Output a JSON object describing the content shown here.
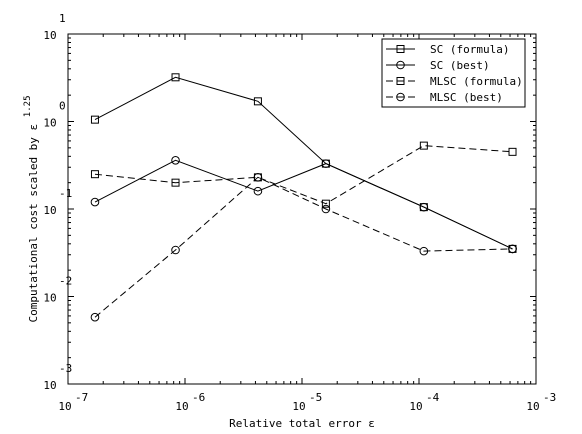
{
  "chart_data": {
    "type": "line",
    "title": "",
    "xlabel": "Relative total error ε",
    "ylabel_base": "Computational cost scaled by ε",
    "ylabel_exp": "1.25",
    "xscale": "log",
    "yscale": "log",
    "xlim": [
      1e-07,
      0.001
    ],
    "ylim": [
      0.001,
      10
    ],
    "x_ticks": [
      {
        "value": 1e-07,
        "base": "10",
        "exp": "-7"
      },
      {
        "value": 1e-06,
        "base": "10",
        "exp": "-6"
      },
      {
        "value": 1e-05,
        "base": "10",
        "exp": "-5"
      },
      {
        "value": 0.0001,
        "base": "10",
        "exp": "-4"
      },
      {
        "value": 0.001,
        "base": "10",
        "exp": "-3"
      }
    ],
    "y_ticks": [
      {
        "value": 0.001,
        "base": "10",
        "exp": "-3"
      },
      {
        "value": 0.01,
        "base": "10",
        "exp": "-2"
      },
      {
        "value": 0.1,
        "base": "10",
        "exp": "-1"
      },
      {
        "value": 1,
        "base": "10",
        "exp": "0"
      },
      {
        "value": 10,
        "base": "10",
        "exp": "1"
      }
    ],
    "grid": false,
    "legend_position": "top-right",
    "series": [
      {
        "name": "SC (formula)",
        "marker": "square",
        "dash": "solid",
        "x": [
          1.7e-07,
          8.3e-07,
          4.2e-06,
          1.6e-05,
          0.00011,
          0.00063
        ],
        "y": [
          1.05,
          3.2,
          1.7,
          0.33,
          0.105,
          0.035
        ]
      },
      {
        "name": "SC (best)",
        "marker": "circle",
        "dash": "solid",
        "x": [
          1.7e-07,
          8.3e-07,
          4.2e-06,
          1.6e-05,
          0.00011,
          0.00063
        ],
        "y": [
          0.12,
          0.36,
          0.16,
          0.33,
          0.105,
          0.035
        ]
      },
      {
        "name": "MLSC (formula)",
        "marker": "square",
        "dash": "dashed",
        "x": [
          1.7e-07,
          8.3e-07,
          4.2e-06,
          1.6e-05,
          0.00011,
          0.00063
        ],
        "y": [
          0.25,
          0.2,
          0.23,
          0.115,
          0.53,
          0.45
        ]
      },
      {
        "name": "MLSC (best)",
        "marker": "circle",
        "dash": "dashed",
        "x": [
          1.7e-07,
          8.3e-07,
          4.2e-06,
          1.6e-05,
          0.00011,
          0.00063
        ],
        "y": [
          0.0058,
          0.034,
          0.23,
          0.1,
          0.033,
          0.035
        ]
      }
    ]
  }
}
